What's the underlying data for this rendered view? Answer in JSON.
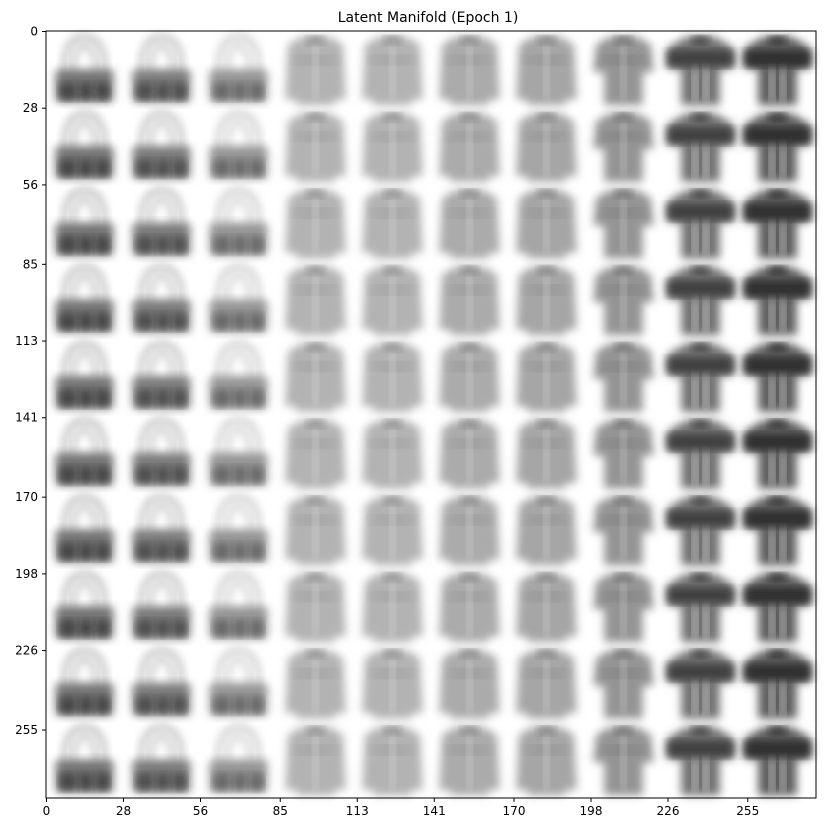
{
  "chart_data": {
    "type": "image_grid",
    "title": "Latent Manifold (Epoch 1)",
    "grid": {
      "rows": 10,
      "cols": 10,
      "image_size": 28,
      "extent": [
        0,
        280,
        280,
        0
      ]
    },
    "xticks": [
      0,
      28,
      56,
      85,
      113,
      141,
      170,
      198,
      226,
      255
    ],
    "yticks": [
      0,
      28,
      56,
      85,
      113,
      141,
      170,
      198,
      226,
      255
    ],
    "colormap": "gray_r",
    "columns": [
      {
        "col": 0,
        "depicts": "bag",
        "darkness": 0.55
      },
      {
        "col": 1,
        "depicts": "bag",
        "darkness": 0.52
      },
      {
        "col": 2,
        "depicts": "bag/shirt blend",
        "darkness": 0.42
      },
      {
        "col": 3,
        "depicts": "shirt",
        "darkness": 0.3
      },
      {
        "col": 4,
        "depicts": "shirt",
        "darkness": 0.3
      },
      {
        "col": 5,
        "depicts": "shirt",
        "darkness": 0.33
      },
      {
        "col": 6,
        "depicts": "shirt",
        "darkness": 0.35
      },
      {
        "col": 7,
        "depicts": "pullover",
        "darkness": 0.42
      },
      {
        "col": 8,
        "depicts": "t-shirt/pullover",
        "darkness": 0.55
      },
      {
        "col": 9,
        "depicts": "t-shirt",
        "darkness": 0.62
      }
    ]
  }
}
